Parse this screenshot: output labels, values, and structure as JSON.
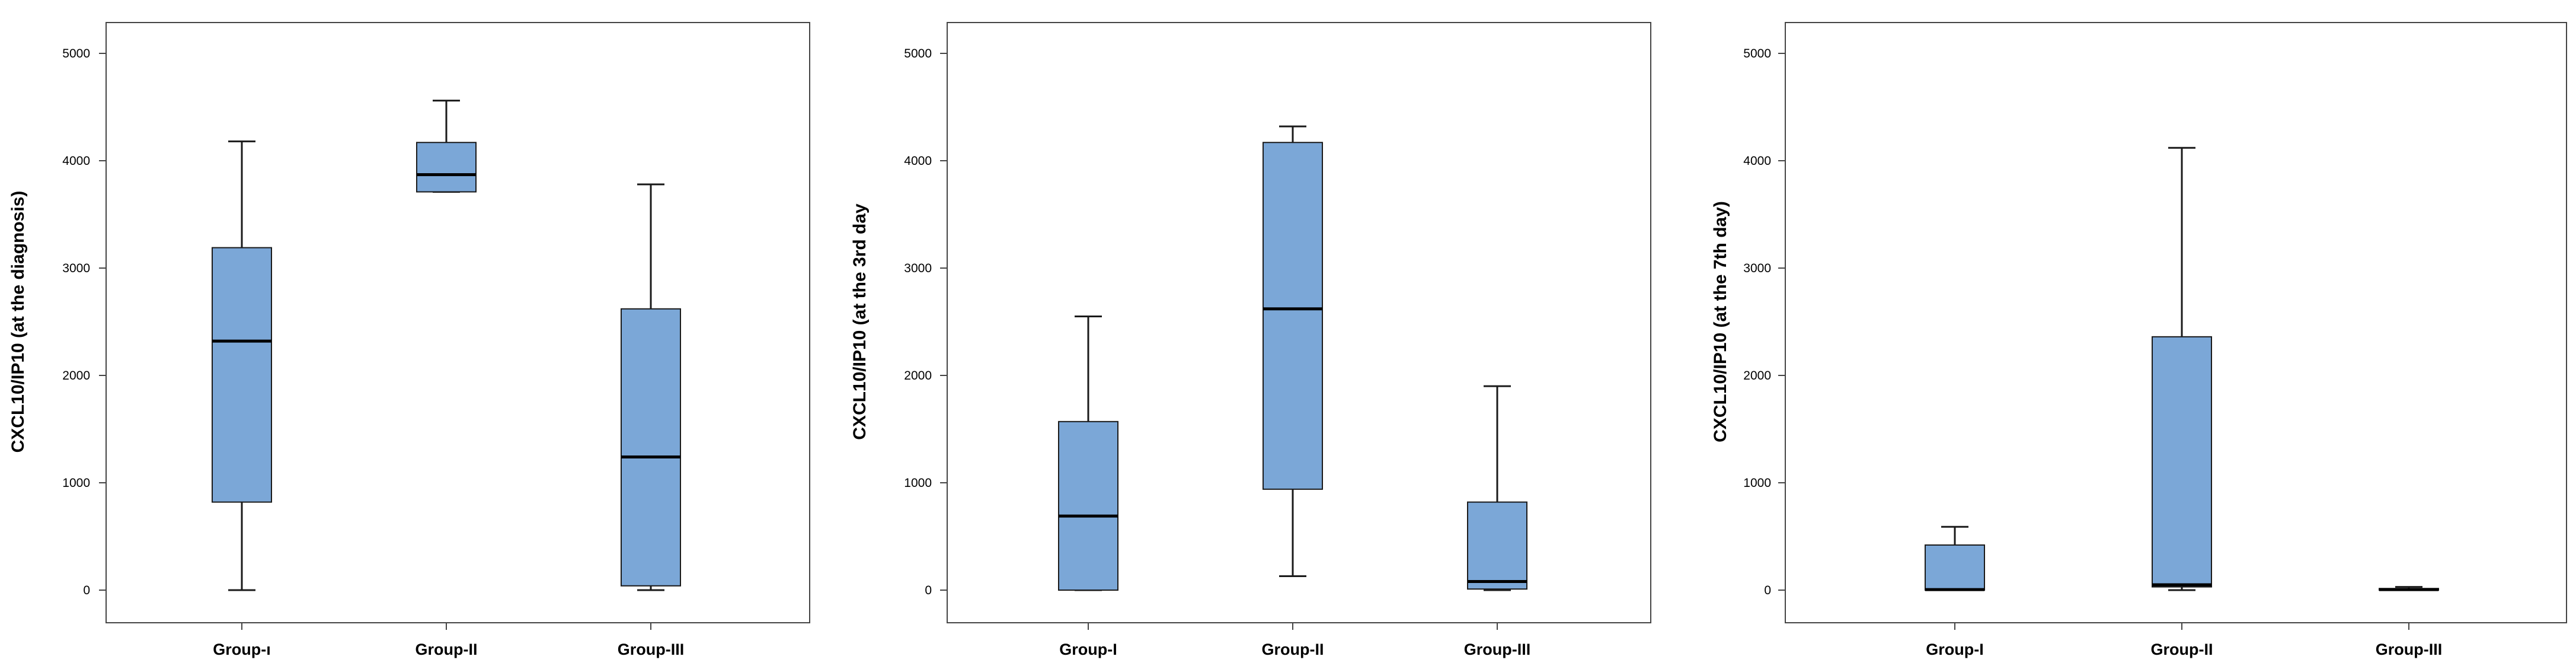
{
  "colors": {
    "box_fill": "#7ba7d7",
    "box_stroke": "#1a1a1a",
    "frame": "#444444"
  },
  "chart_data": [
    {
      "type": "boxplot",
      "ylabel": "CXCL10/IP10 (at the diagnosis)",
      "ylim": [
        0,
        5000
      ],
      "yticks": [
        0,
        1000,
        2000,
        3000,
        4000,
        5000
      ],
      "yticklabels": [
        "0",
        "1000",
        "2000",
        "3000",
        "4000",
        "5000"
      ],
      "categories": [
        "Group-ı",
        "Group-II",
        "Group-III"
      ],
      "boxes": [
        {
          "min": 0,
          "q1": 820,
          "median": 2320,
          "q3": 3190,
          "max": 4180
        },
        {
          "min": 3710,
          "q1": 3710,
          "median": 3870,
          "q3": 4170,
          "max": 4560
        },
        {
          "min": 0,
          "q1": 40,
          "median": 1240,
          "q3": 2620,
          "max": 3780
        }
      ]
    },
    {
      "type": "boxplot",
      "ylabel": "CXCL10/IP10 (at the 3rd day",
      "ylim": [
        0,
        5000
      ],
      "yticks": [
        0,
        1000,
        2000,
        3000,
        4000,
        5000
      ],
      "yticklabels": [
        "0",
        "1000",
        "2000",
        "3000",
        "4000",
        "5000"
      ],
      "categories": [
        "Group-I",
        "Group-II",
        "Group-III"
      ],
      "boxes": [
        {
          "min": 0,
          "q1": 0,
          "median": 690,
          "q3": 1570,
          "max": 2550
        },
        {
          "min": 130,
          "q1": 940,
          "median": 2620,
          "q3": 4170,
          "max": 4320
        },
        {
          "min": 0,
          "q1": 10,
          "median": 80,
          "q3": 820,
          "max": 1900
        }
      ]
    },
    {
      "type": "boxplot",
      "ylabel": "CXCL10/IP10 (at the 7th day)",
      "ylim": [
        0,
        5000
      ],
      "yticks": [
        0,
        1000,
        2000,
        3000,
        4000,
        5000
      ],
      "yticklabels": [
        "0",
        "1000",
        "2000",
        "3000",
        "4000",
        "5000"
      ],
      "categories": [
        "Group-I",
        "Group-II",
        "Group-III"
      ],
      "boxes": [
        {
          "min": 0,
          "q1": 0,
          "median": 5,
          "q3": 420,
          "max": 590
        },
        {
          "min": 0,
          "q1": 30,
          "median": 50,
          "q3": 2360,
          "max": 4120
        },
        {
          "min": 0,
          "q1": 0,
          "median": 5,
          "q3": 15,
          "max": 30
        }
      ]
    }
  ]
}
